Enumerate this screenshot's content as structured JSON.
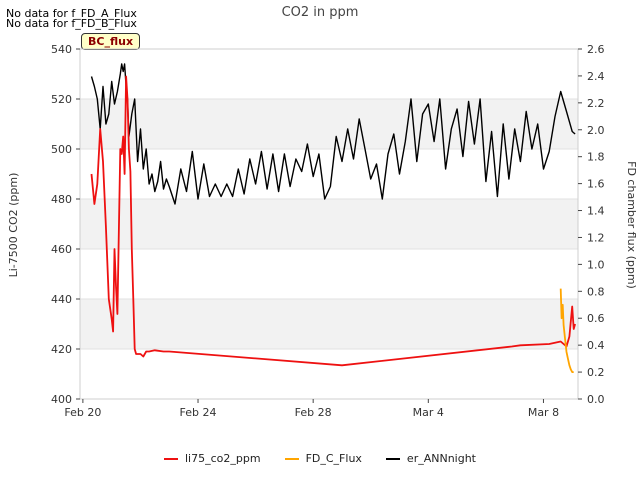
{
  "notes": [
    "No data for f_FD_A_Flux",
    "No data for f_FD_B_Flux"
  ],
  "badge": "BC_flux",
  "colors": {
    "li75": "#ee1111",
    "fdc": "#ffa500",
    "ann": "#000000",
    "band": "#f2f2f2",
    "grid": "#e2e2e2"
  },
  "chart_data": {
    "type": "line",
    "title": "CO2 in ppm",
    "ylabel": "Li-7500 CO2 (ppm)",
    "y2label": "FD chamber flux (ppm)",
    "xlabel": "",
    "x_unit": "days since Feb 20",
    "xlim": [
      -0.1,
      17.2
    ],
    "ylim": [
      400,
      540
    ],
    "y2lim": [
      0.0,
      2.6
    ],
    "x_ticks": [
      {
        "x": 0,
        "label": "Feb 20"
      },
      {
        "x": 4,
        "label": "Feb 24"
      },
      {
        "x": 8,
        "label": "Feb 28"
      },
      {
        "x": 12,
        "label": "Mar 4"
      },
      {
        "x": 16,
        "label": "Mar 8"
      }
    ],
    "y_ticks": [
      400,
      420,
      440,
      460,
      480,
      500,
      520,
      540
    ],
    "y2_ticks": [
      0.0,
      0.2,
      0.4,
      0.6,
      0.8,
      1.0,
      1.2,
      1.4,
      1.6,
      1.8,
      2.0,
      2.2,
      2.4,
      2.6
    ],
    "y2_tick_labels": [
      "0.0",
      "0.2",
      "0.4",
      "0.6",
      "0.8",
      "1.0",
      "1.2",
      "1.4",
      "1.6",
      "1.8",
      "2.0",
      "2.2",
      "2.4",
      "2.6"
    ],
    "legend_position": "bottom",
    "series": [
      {
        "name": "li75_co2_ppm",
        "axis": "left",
        "x": [
          0.3,
          0.4,
          0.5,
          0.6,
          0.7,
          0.8,
          0.9,
          1.0,
          1.05,
          1.1,
          1.15,
          1.2,
          1.3,
          1.35,
          1.4,
          1.45,
          1.5,
          1.55,
          1.6,
          1.65,
          1.7,
          1.75,
          1.8,
          1.85,
          1.9,
          2.0,
          2.1,
          2.2,
          2.3,
          2.5,
          2.8,
          3.0,
          9.0,
          14.9,
          15.2,
          16.2,
          16.6,
          16.8,
          16.9,
          17.0,
          17.05,
          17.1
        ],
        "y": [
          490,
          478,
          486,
          508,
          495,
          469,
          440,
          432,
          427,
          460,
          445,
          434,
          500,
          498,
          505,
          490,
          529,
          520,
          500,
          491,
          460,
          440,
          420,
          418,
          418,
          418,
          417,
          419,
          419,
          419.5,
          419,
          419,
          413.5,
          421,
          421.5,
          422,
          423,
          421,
          425,
          437,
          428,
          430
        ]
      },
      {
        "name": "FD_C_Flux",
        "axis": "right",
        "x": [
          16.6,
          16.63,
          16.67,
          16.7,
          16.75,
          16.8,
          16.85,
          16.9,
          16.95,
          17.0,
          17.05
        ],
        "y": [
          0.82,
          0.6,
          0.7,
          0.55,
          0.45,
          0.35,
          0.3,
          0.25,
          0.22,
          0.2,
          0.2
        ]
      },
      {
        "name": "er_ANNnight",
        "axis": "left",
        "x": [
          0.3,
          0.4,
          0.5,
          0.6,
          0.7,
          0.8,
          0.9,
          1.0,
          1.1,
          1.2,
          1.3,
          1.35,
          1.4,
          1.45,
          1.5,
          1.55,
          1.6,
          1.7,
          1.8,
          1.9,
          2.0,
          2.1,
          2.2,
          2.3,
          2.4,
          2.5,
          2.6,
          2.7,
          2.8,
          2.9,
          3.0,
          3.2,
          3.4,
          3.6,
          3.8,
          4.0,
          4.2,
          4.4,
          4.6,
          4.8,
          5.0,
          5.2,
          5.4,
          5.6,
          5.8,
          6.0,
          6.2,
          6.4,
          6.6,
          6.8,
          7.0,
          7.2,
          7.4,
          7.6,
          7.8,
          8.0,
          8.2,
          8.4,
          8.6,
          8.8,
          9.0,
          9.2,
          9.4,
          9.6,
          9.8,
          10.0,
          10.2,
          10.4,
          10.6,
          10.8,
          11.0,
          11.2,
          11.4,
          11.6,
          11.8,
          12.0,
          12.2,
          12.4,
          12.6,
          12.8,
          13.0,
          13.2,
          13.4,
          13.6,
          13.8,
          14.0,
          14.2,
          14.4,
          14.6,
          14.8,
          15.0,
          15.2,
          15.4,
          15.6,
          15.8,
          16.0,
          16.2,
          16.4,
          16.6,
          16.8,
          17.0,
          17.1
        ],
        "y": [
          529,
          525,
          520,
          508,
          525,
          510,
          514,
          527,
          518,
          523,
          530,
          534,
          531,
          534,
          525,
          520,
          505,
          514,
          520,
          495,
          508,
          492,
          500,
          486,
          490,
          483,
          487,
          495,
          484,
          488,
          485,
          478,
          492,
          483,
          499,
          480,
          494,
          481,
          486,
          481,
          486,
          481,
          492,
          482,
          496,
          486,
          499,
          484,
          498,
          483,
          498,
          485,
          496,
          491,
          502,
          489,
          498,
          480,
          485,
          505,
          495,
          508,
          496,
          512,
          500,
          488,
          494,
          480,
          498,
          506,
          490,
          503,
          520,
          495,
          514,
          518,
          503,
          520,
          492,
          508,
          516,
          497,
          519,
          502,
          520,
          487,
          507,
          481,
          510,
          488,
          508,
          495,
          515,
          500,
          510,
          492,
          499,
          513,
          523,
          515,
          507,
          506
        ]
      }
    ]
  }
}
